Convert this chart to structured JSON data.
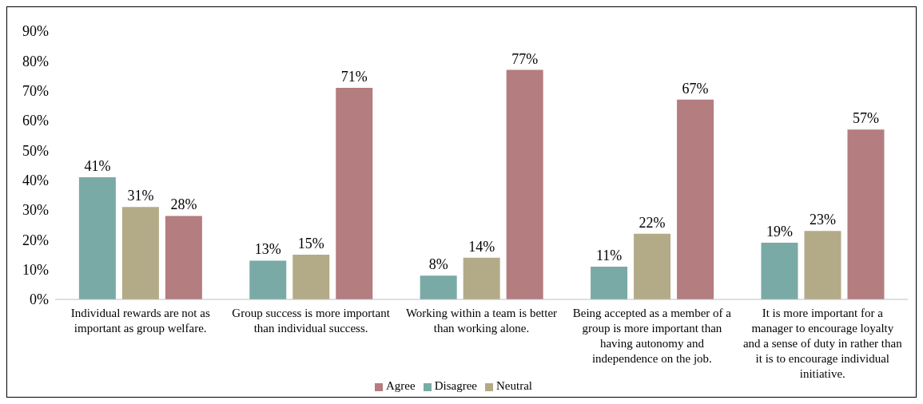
{
  "chart_data": {
    "type": "bar",
    "categories": [
      "Individual rewards are not as important as group welfare.",
      "Group success is more important than individual success.",
      "Working within a team is better than working alone.",
      "Being accepted as a member of a group is more important than having autonomy and independence on the job.",
      "It is more important for a manager to encourage loyalty and a sense of duty in rather than it is to encourage individual initiative."
    ],
    "series": [
      {
        "name": "Disagree",
        "color": "#79aaa6",
        "values": [
          41,
          13,
          8,
          11,
          19
        ],
        "value_labels": [
          "41%",
          "13%",
          "8%",
          "11%",
          "19%"
        ]
      },
      {
        "name": "Neutral",
        "color": "#b3ab87",
        "values": [
          31,
          15,
          14,
          22,
          23
        ],
        "value_labels": [
          "31%",
          "15%",
          "14%",
          "22%",
          "23%"
        ]
      },
      {
        "name": "Agree",
        "color": "#b47d80",
        "values": [
          28,
          71,
          77,
          67,
          57
        ],
        "value_labels": [
          "28%",
          "71%",
          "77%",
          "67%",
          "57%"
        ]
      }
    ],
    "ylim": [
      0,
      90
    ],
    "yticks": [
      {
        "value": 0,
        "label": "0%"
      },
      {
        "value": 10,
        "label": "10%"
      },
      {
        "value": 20,
        "label": "20%"
      },
      {
        "value": 30,
        "label": "30%"
      },
      {
        "value": 40,
        "label": "40%"
      },
      {
        "value": 50,
        "label": "50%"
      },
      {
        "value": 60,
        "label": "60%"
      },
      {
        "value": 70,
        "label": "70%"
      },
      {
        "value": 80,
        "label": "80%"
      },
      {
        "value": 90,
        "label": "90%"
      }
    ],
    "grid": false,
    "legend": "bottom"
  }
}
